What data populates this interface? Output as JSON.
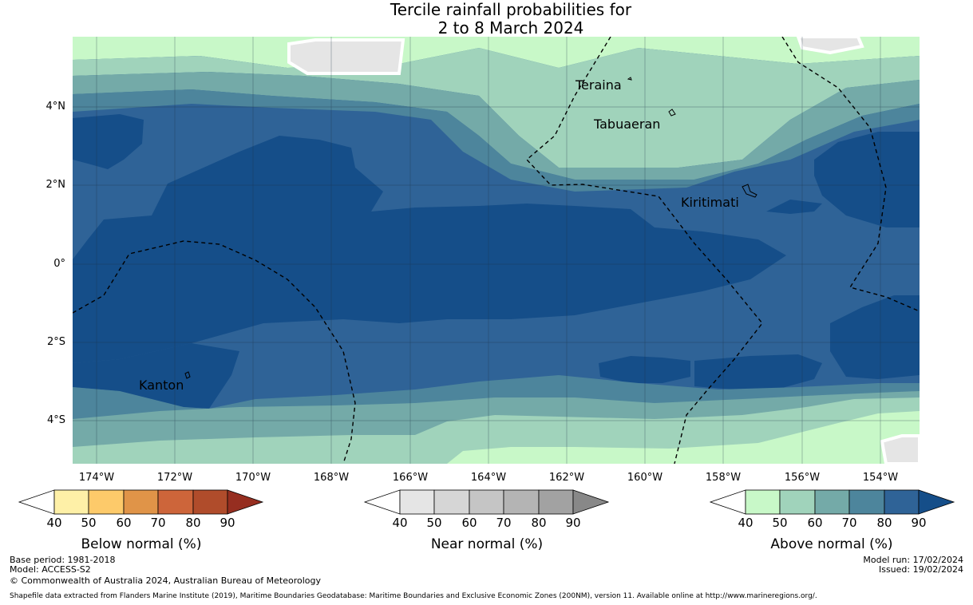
{
  "title_line1": "Tercile rainfall probabilities for",
  "title_line2": "2 to 8 March 2024",
  "lat_labels": [
    "4°N",
    "2°N",
    "0°",
    "2°S",
    "4°S"
  ],
  "lon_labels": [
    "174°W",
    "172°W",
    "170°W",
    "168°W",
    "166°W",
    "164°W",
    "162°W",
    "160°W",
    "158°W",
    "156°W",
    "154°W"
  ],
  "places": {
    "teraina": "Teraina",
    "tabuaeran": "Tabuaeran",
    "kiritimati": "Kiritimati",
    "kanton": "Kanton"
  },
  "colorbars": {
    "below": {
      "title": "Below normal (%)",
      "ticks": [
        "40",
        "50",
        "60",
        "70",
        "80",
        "90"
      ],
      "colors": [
        "#fef0a7",
        "#fdca6a",
        "#e09448",
        "#cd653a",
        "#b04c2b",
        "#962e20"
      ]
    },
    "near": {
      "title": "Near normal (%)",
      "ticks": [
        "40",
        "50",
        "60",
        "70",
        "80",
        "90"
      ],
      "colors": [
        "#e5e5e5",
        "#d6d6d6",
        "#c5c5c5",
        "#b4b4b4",
        "#a2a2a2",
        "#888888"
      ]
    },
    "above": {
      "title": "Above normal (%)",
      "ticks": [
        "40",
        "50",
        "60",
        "70",
        "80",
        "90"
      ],
      "colors": [
        "#c8f8c8",
        "#a0d3bb",
        "#74aaa8",
        "#4d859c",
        "#2f6397",
        "#154e89"
      ]
    }
  },
  "footer": {
    "base_period": "Base period: 1981-2018",
    "model": "Model: ACCESS-S2",
    "copyright": "© Commonwealth of Australia 2024, Australian Bureau of Meteorology",
    "model_run": "Model run: 17/02/2024",
    "issued": "Issued: 19/02/2024",
    "shapefile": "Shapefile data extracted from Flanders Marine Institute (2019), Maritime Boundaries Geodatabase: Maritime Boundaries and Exclusive Economic Zones (200NM), version 11. Available online at http://www.marineregions.org/."
  }
}
